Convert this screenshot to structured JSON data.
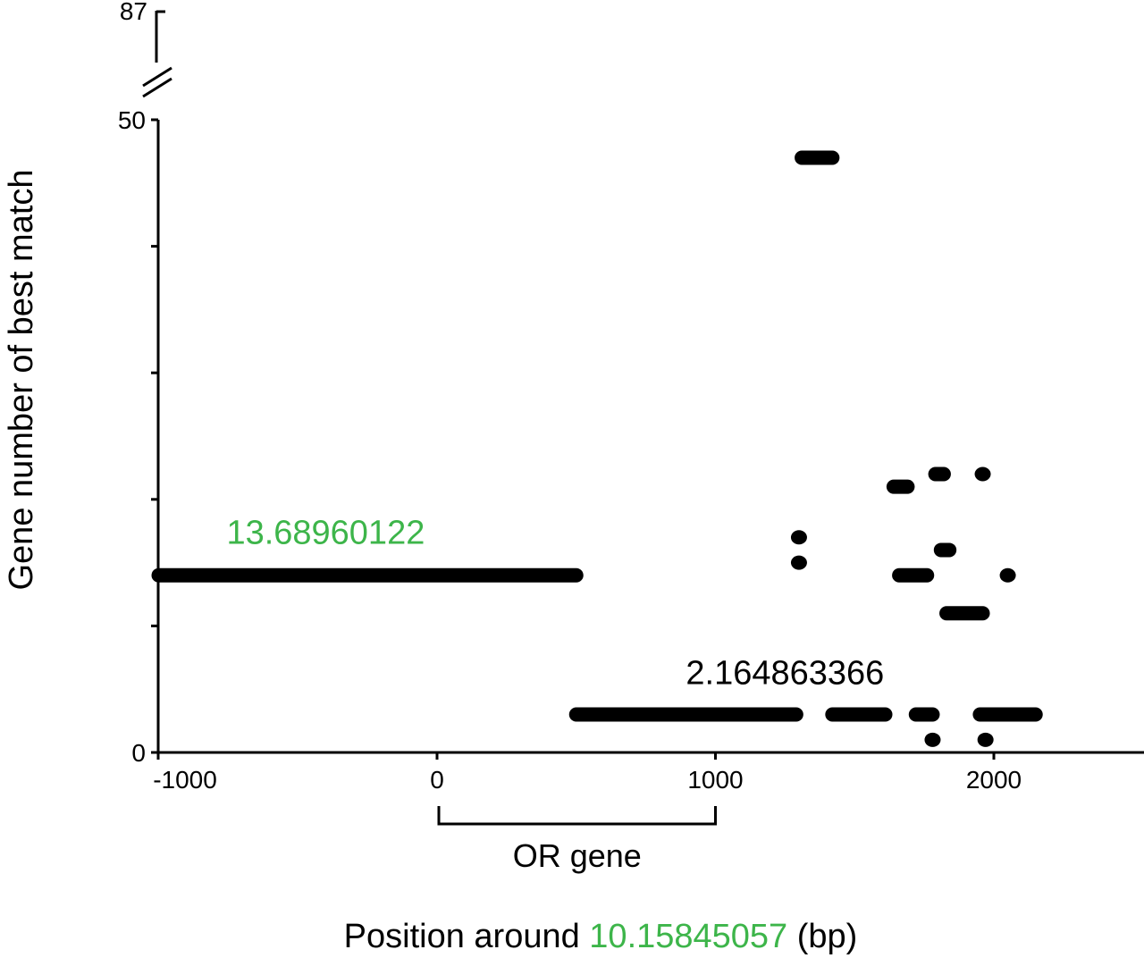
{
  "chart_data": {
    "type": "scatter",
    "xlabel_prefix": "Position around ",
    "xlabel_highlight": "10.15845057",
    "xlabel_suffix": " (bp)",
    "ylabel": "Gene number of best match",
    "xlim": [
      -1000,
      2500
    ],
    "ylim": [
      0,
      50
    ],
    "y_break_top": 87,
    "x_ticks": [
      -1000,
      0,
      1000,
      2000
    ],
    "y_ticks_labeled": [
      0,
      50
    ],
    "y_ticks_minor": [
      10,
      20,
      30,
      40
    ],
    "accent_color": "#3db54a",
    "annotations": [
      {
        "text": "13.68960122",
        "color": "#3db54a",
        "x": -400,
        "y": 16.5
      },
      {
        "text": "2.164863366",
        "color": "#000000",
        "x": 1250,
        "y": 5.4
      }
    ],
    "bracket": {
      "label": "OR gene",
      "x_start": 0,
      "x_end": 1000
    },
    "segments": [
      {
        "x_start": -1000,
        "x_end": 500,
        "y": 14
      },
      {
        "x_start": 500,
        "x_end": 1290,
        "y": 3
      },
      {
        "x_start": 1310,
        "x_end": 1420,
        "y": 47
      },
      {
        "x_start": 1420,
        "x_end": 1610,
        "y": 3
      },
      {
        "x_start": 1640,
        "x_end": 1690,
        "y": 21
      },
      {
        "x_start": 1660,
        "x_end": 1760,
        "y": 14
      },
      {
        "x_start": 1720,
        "x_end": 1780,
        "y": 3
      },
      {
        "x_start": 1790,
        "x_end": 1820,
        "y": 22
      },
      {
        "x_start": 1810,
        "x_end": 1840,
        "y": 16
      },
      {
        "x_start": 1830,
        "x_end": 1960,
        "y": 11
      },
      {
        "x_start": 1950,
        "x_end": 2150,
        "y": 3
      }
    ],
    "points": [
      {
        "x": 1300,
        "y": 17
      },
      {
        "x": 1300,
        "y": 15
      },
      {
        "x": 1960,
        "y": 22
      },
      {
        "x": 2050,
        "y": 14
      },
      {
        "x": 1780,
        "y": 1
      },
      {
        "x": 1970,
        "y": 1
      }
    ]
  }
}
